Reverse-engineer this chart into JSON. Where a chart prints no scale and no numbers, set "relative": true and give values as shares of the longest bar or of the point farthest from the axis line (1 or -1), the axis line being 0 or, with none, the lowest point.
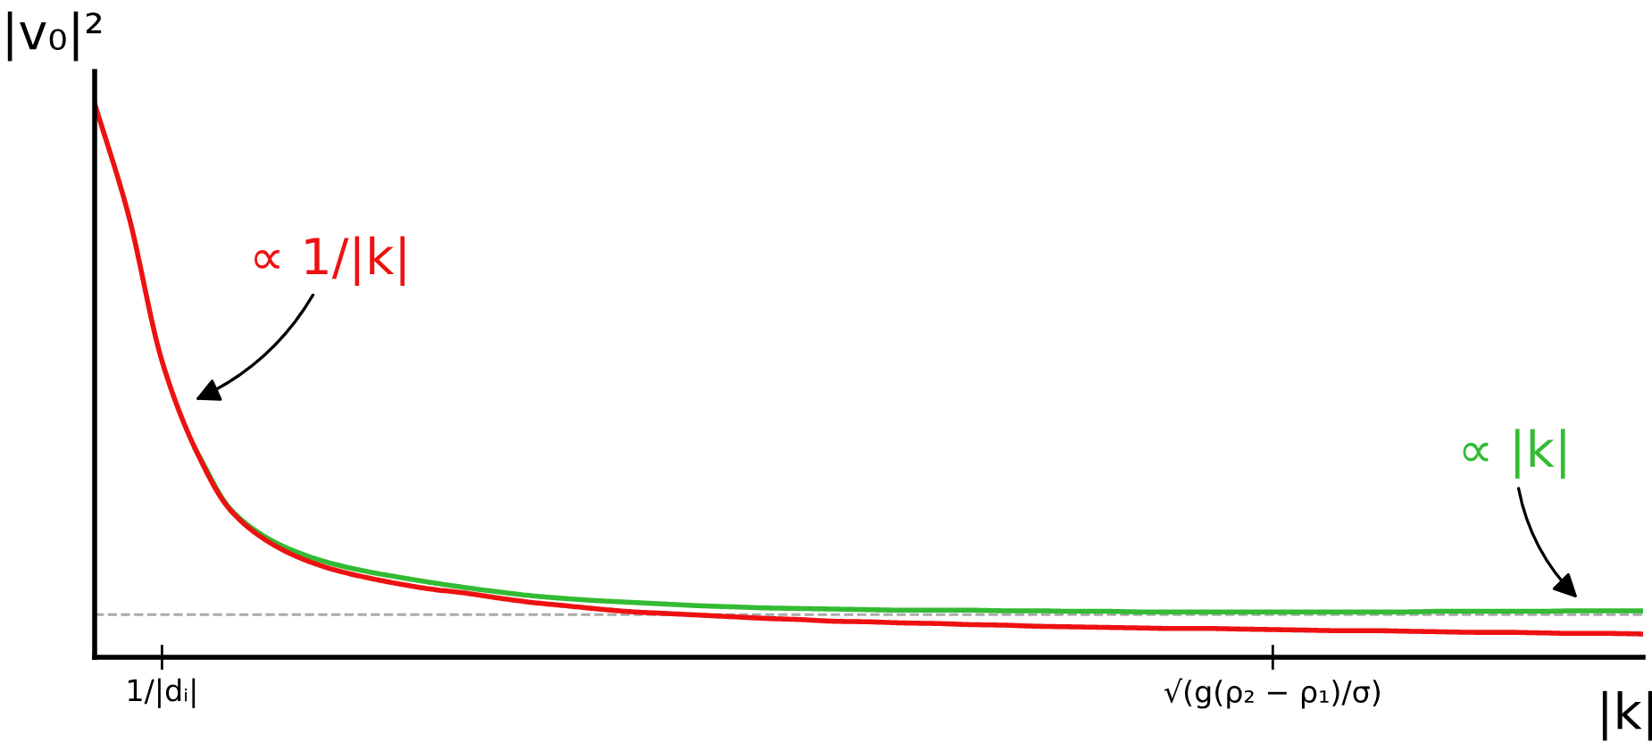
{
  "chart_data": {
    "type": "line",
    "relative": true,
    "ylabel": "|v₀|²",
    "xlabel": "|k|",
    "categories": [
      null,
      null,
      "1/|dᵢ|",
      null,
      null,
      null,
      null,
      null,
      null,
      null,
      null,
      null,
      null,
      null,
      null,
      null,
      null,
      null,
      null,
      null,
      null,
      null,
      null,
      null,
      null,
      null,
      null,
      null,
      null,
      null,
      null,
      null,
      null,
      null,
      null,
      "√(g(ρ₂ − ρ₁)/σ)",
      null,
      null,
      null,
      null,
      null,
      null,
      null,
      null,
      null,
      null,
      null
    ],
    "grid": false,
    "legend": false,
    "marker": "none",
    "line_style": "solid",
    "series": [
      {
        "color": "#33bb33",
        "values": [
          null,
          null,
          null,
          0.375,
          0.27,
          0.22,
          0.19,
          0.17,
          0.156,
          0.145,
          0.135,
          0.126,
          0.118,
          0.111,
          0.106,
          0.102,
          0.099,
          0.096,
          0.093,
          0.091,
          0.089,
          0.088,
          0.087,
          0.086,
          0.085,
          0.085,
          0.085,
          0.084,
          0.084,
          0.083,
          0.083,
          0.082,
          0.082,
          0.082,
          0.082,
          0.082,
          0.082,
          0.082,
          0.082,
          0.082,
          0.083,
          0.083,
          0.083,
          0.083,
          0.084,
          0.084,
          0.084
        ]
      },
      {
        "color": "#ee1111",
        "values": [
          1.0,
          0.8,
          0.535,
          0.375,
          0.268,
          0.215,
          0.182,
          0.16,
          0.145,
          0.133,
          0.123,
          0.116,
          0.107,
          0.099,
          0.093,
          0.087,
          0.082,
          0.079,
          0.076,
          0.073,
          0.07,
          0.068,
          0.065,
          0.064,
          0.062,
          0.061,
          0.059,
          0.058,
          0.056,
          0.055,
          0.054,
          0.053,
          0.052,
          0.052,
          0.051,
          0.05,
          0.049,
          0.048,
          0.048,
          0.047,
          0.046,
          0.045,
          0.045,
          0.044,
          0.043,
          0.043,
          0.042
        ]
      }
    ],
    "ref_lines": [
      {
        "axis": "y",
        "value": 0.077,
        "color": "#aaaaaa",
        "line_style": "dashed"
      }
    ],
    "annotations": [
      "∝ |k|",
      "∝ 1/|k|"
    ]
  }
}
